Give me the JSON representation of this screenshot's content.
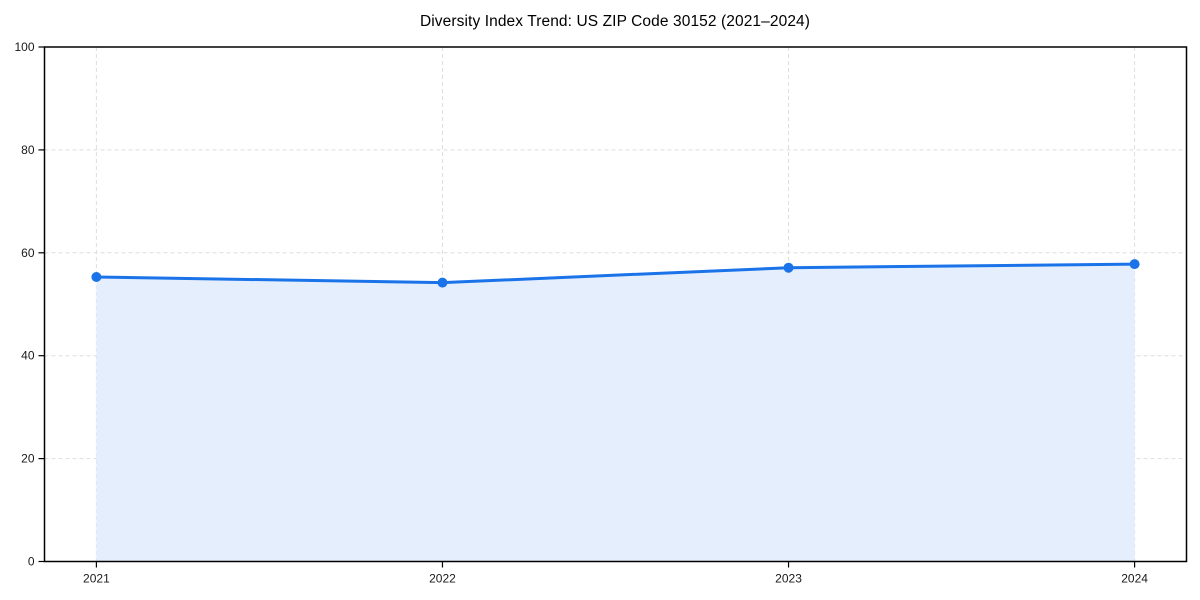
{
  "page": {
    "background": "#ffffff"
  },
  "chart_data": {
    "type": "area",
    "title": "Diversity Index Trend: US ZIP Code 30152 (2021–2024)",
    "x": [
      2021,
      2022,
      2023,
      2024
    ],
    "series": [
      {
        "name": "Diversity Index",
        "values": [
          55.3,
          54.2,
          57.1,
          57.8
        ]
      }
    ],
    "xlabel": "",
    "ylabel": "",
    "xlim": [
      2020.85,
      2024.15
    ],
    "ylim": [
      0,
      100
    ],
    "xticks": [
      2021,
      2022,
      2023,
      2024
    ],
    "xtick_labels": [
      "2021",
      "2022",
      "2023",
      "2024"
    ],
    "yticks": [
      0,
      20,
      40,
      60,
      80,
      100
    ],
    "ytick_labels": [
      "0",
      "20",
      "40",
      "60",
      "80",
      "100"
    ],
    "grid": true,
    "grid_style": "dashed",
    "legend": "none",
    "colors": {
      "line": "#1a73e8",
      "marker": "#1a73e8",
      "area_fill": "#e4eefc",
      "grid": "#dedede",
      "spine": "#000000",
      "tick_label": "#1a1a1a",
      "title": "#000000"
    }
  }
}
